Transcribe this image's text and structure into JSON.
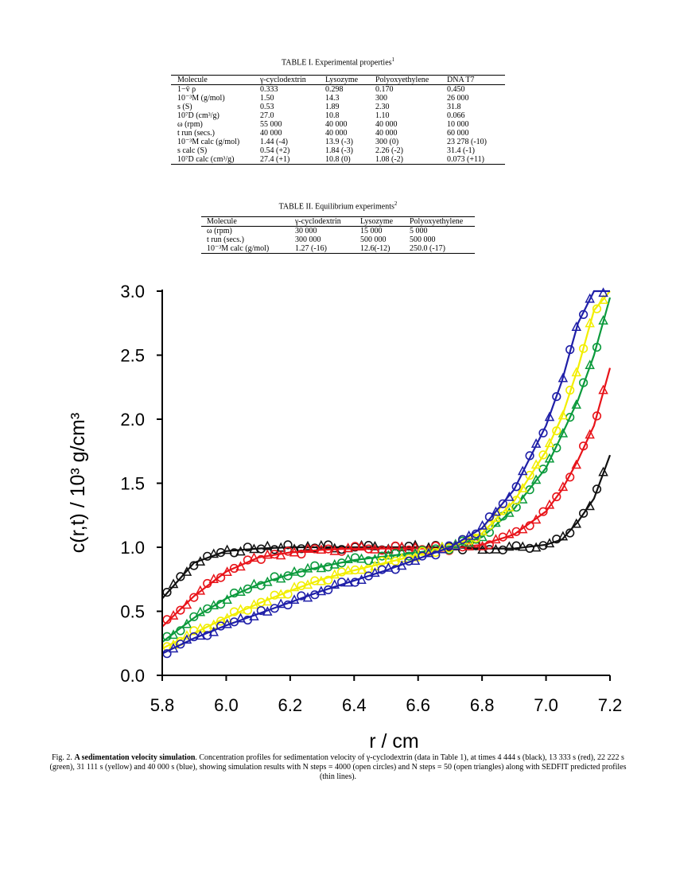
{
  "table1": {
    "caption": "TABLE I. Experimental properties",
    "caption_sup": "1",
    "headers": [
      "Molecule",
      "γ-cyclodextrin",
      "Lysozyme",
      "Polyoxyethylene",
      "DNA T7"
    ],
    "rows": [
      [
        "1−v̄ ρ",
        "0.333",
        "0.298",
        "0.170",
        "0.450"
      ],
      [
        "10⁻³M (g/mol)",
        "1.50",
        "14.3",
        "300",
        "26 000"
      ],
      [
        "s (S)",
        "0.53",
        "1.89",
        "2.30",
        "31.8"
      ],
      [
        "10⁷D (cm³/g)",
        "27.0",
        "10.8",
        "1.10",
        "0.066"
      ],
      [
        "ω (rpm)",
        "55 000",
        "40 000",
        "40 000",
        "10 000"
      ],
      [
        "t run (secs.)",
        "40 000",
        "40 000",
        "40 000",
        "60 000"
      ],
      [
        "10⁻³M calc (g/mol)",
        "1.44 (-4)",
        "13.9 (-3)",
        "300 (0)",
        "23 278 (-10)"
      ],
      [
        "s calc (S)",
        "0.54 (+2)",
        "1.84 (-3)",
        "2.26 (-2)",
        "31.4 (-1)"
      ],
      [
        "10⁷D calc (cm³/g)",
        "27.4 (+1)",
        "10.8 (0)",
        "1.08 (-2)",
        "0.073 (+11)"
      ]
    ]
  },
  "table2": {
    "caption": "TABLE II. Equilibrium experiments",
    "caption_sup": "2",
    "headers": [
      "Molecule",
      "γ-cyclodextrin",
      "Lysozyme",
      "Polyoxyethylene"
    ],
    "rows": [
      [
        "ω (rpm)",
        "30 000",
        "15 000",
        "5 000"
      ],
      [
        "t run (secs.)",
        "300 000",
        "500 000",
        "500 000"
      ],
      [
        "10⁻³M calc (g/mol)",
        "1.27 (-16)",
        "12.6(-12)",
        "250.0 (-17)"
      ]
    ]
  },
  "chart_data": {
    "type": "line",
    "title": "",
    "xlabel": "r / cm",
    "ylabel": "c(r,t)  / 10³ g/cm³",
    "xlim": [
      5.8,
      7.2
    ],
    "ylim": [
      0.0,
      3.0
    ],
    "xticks": [
      "5.8",
      "6.0",
      "6.2",
      "6.4",
      "6.6",
      "6.8",
      "7.0",
      "7.2"
    ],
    "yticks": [
      "0.0",
      "0.5",
      "1.0",
      "1.5",
      "2.0",
      "2.5",
      "3.0"
    ],
    "x": [
      5.8,
      5.9,
      6.0,
      6.1,
      6.2,
      6.3,
      6.4,
      6.5,
      6.6,
      6.7,
      6.8,
      6.9,
      7.0,
      7.05,
      7.1,
      7.15,
      7.2
    ],
    "series": [
      {
        "name": "4 444 s",
        "color": "#111111",
        "values": [
          0.6,
          0.88,
          0.97,
          0.99,
          1.0,
          1.0,
          1.0,
          1.0,
          1.0,
          1.0,
          0.99,
          0.99,
          1.02,
          1.06,
          1.2,
          1.38,
          1.72
        ]
      },
      {
        "name": "13 333 s",
        "color": "#e8141a",
        "values": [
          0.38,
          0.62,
          0.81,
          0.92,
          0.96,
          0.98,
          0.99,
          0.99,
          0.99,
          0.99,
          1.02,
          1.1,
          1.28,
          1.45,
          1.68,
          1.95,
          2.4
        ]
      },
      {
        "name": "22 222 s",
        "color": "#0b9a3c",
        "values": [
          0.26,
          0.45,
          0.6,
          0.71,
          0.79,
          0.85,
          0.9,
          0.93,
          0.96,
          1.0,
          1.08,
          1.3,
          1.62,
          1.88,
          2.15,
          2.5,
          2.95
        ]
      },
      {
        "name": "31 111 s",
        "color": "#f2ee00",
        "values": [
          0.21,
          0.33,
          0.45,
          0.56,
          0.66,
          0.75,
          0.82,
          0.88,
          0.94,
          1.0,
          1.11,
          1.36,
          1.75,
          2.02,
          2.4,
          2.85,
          3.0
        ]
      },
      {
        "name": "40 000 s",
        "color": "#1f1fa8",
        "values": [
          0.17,
          0.29,
          0.39,
          0.48,
          0.57,
          0.66,
          0.74,
          0.82,
          0.91,
          1.0,
          1.15,
          1.45,
          1.95,
          2.3,
          2.75,
          3.0,
          3.0
        ]
      }
    ],
    "markers": [
      "open circles: N steps = 4000",
      "open triangles: N steps = 50",
      "thin lines: SEDFIT predicted profiles"
    ]
  },
  "figure_caption": {
    "prefix": "Fig. 2. ",
    "bold_title": "A sedimentation velocity simulation",
    "text": ". Concentration profiles for sedimentation velocity of γ-cyclodextrin (data in Table 1), at times 4 444 s (black), 13 333 s (red), 22 222 s (green), 31 111 s (yellow) and 40 000 s (blue), showing simulation results with N steps = 4000 (open circles) and N steps = 50 (open triangles) along with SEDFIT predicted profiles (thin lines)."
  }
}
